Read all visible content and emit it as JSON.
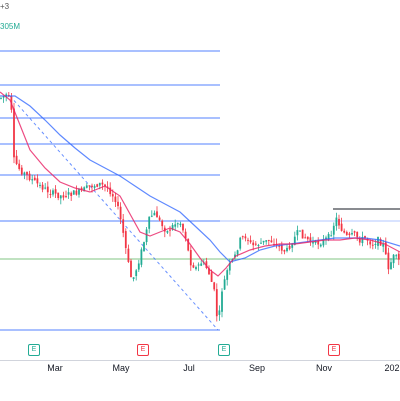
{
  "header": {
    "interval_fragment": "+3",
    "indicator_fragment": "305M"
  },
  "x_axis_labels": [
    "Mar",
    "May",
    "Jul",
    "Sep",
    "Nov",
    "202"
  ],
  "earnings_badge_letter": "E",
  "earnings_badges": [
    {
      "id": "jan",
      "status": "positive"
    },
    {
      "id": "may",
      "status": "negative"
    },
    {
      "id": "aug",
      "status": "positive"
    },
    {
      "id": "nov",
      "status": "negative"
    }
  ],
  "colors": {
    "bull": "#22ab94",
    "bear": "#f23645",
    "ma_fast": "#e91e63",
    "ma_slow": "#2962ff",
    "fib_lines": "#2962ff",
    "fib_zone": "#4caf50",
    "trendline": "#131722"
  }
}
